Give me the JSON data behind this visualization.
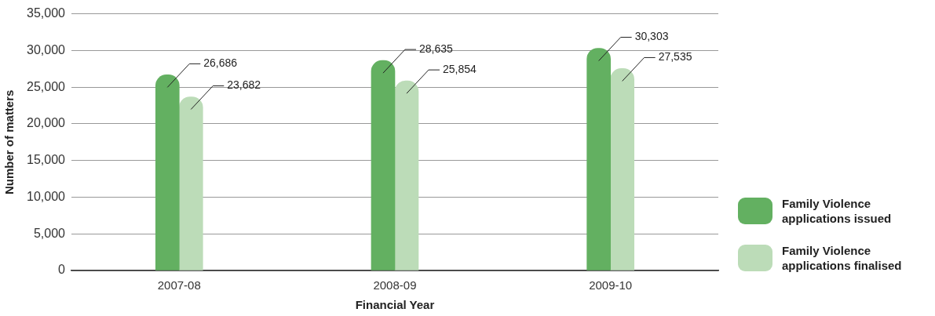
{
  "chart_data": {
    "type": "bar",
    "xlabel": "Financial Year",
    "ylabel": "Number of matters",
    "categories": [
      "2007-08",
      "2008-09",
      "2009-10"
    ],
    "series": [
      {
        "name": "Family Violence applications issued",
        "color": "#63b061",
        "values": [
          26686,
          28635,
          30303
        ],
        "value_labels": [
          "26,686",
          "28,635",
          "30,303"
        ]
      },
      {
        "name": "Family Violence applications finalised",
        "color": "#bcdcb8",
        "values": [
          23682,
          25854,
          27535
        ],
        "value_labels": [
          "23,682",
          "25,854",
          "27,535"
        ]
      }
    ],
    "ylim": [
      0,
      35000
    ],
    "yticks": [
      0,
      {
        "value": 5000,
        "label": "5,000"
      },
      {
        "value": 10000,
        "label": "10,000"
      },
      {
        "value": 15000,
        "label": "15,000"
      },
      {
        "value": 20000,
        "label": "20,000"
      },
      {
        "value": 25000,
        "label": "25,000"
      },
      {
        "value": 30000,
        "label": "30,000"
      },
      {
        "value": 35000,
        "label": "35,000"
      }
    ],
    "grid": "y",
    "legend": "right"
  }
}
